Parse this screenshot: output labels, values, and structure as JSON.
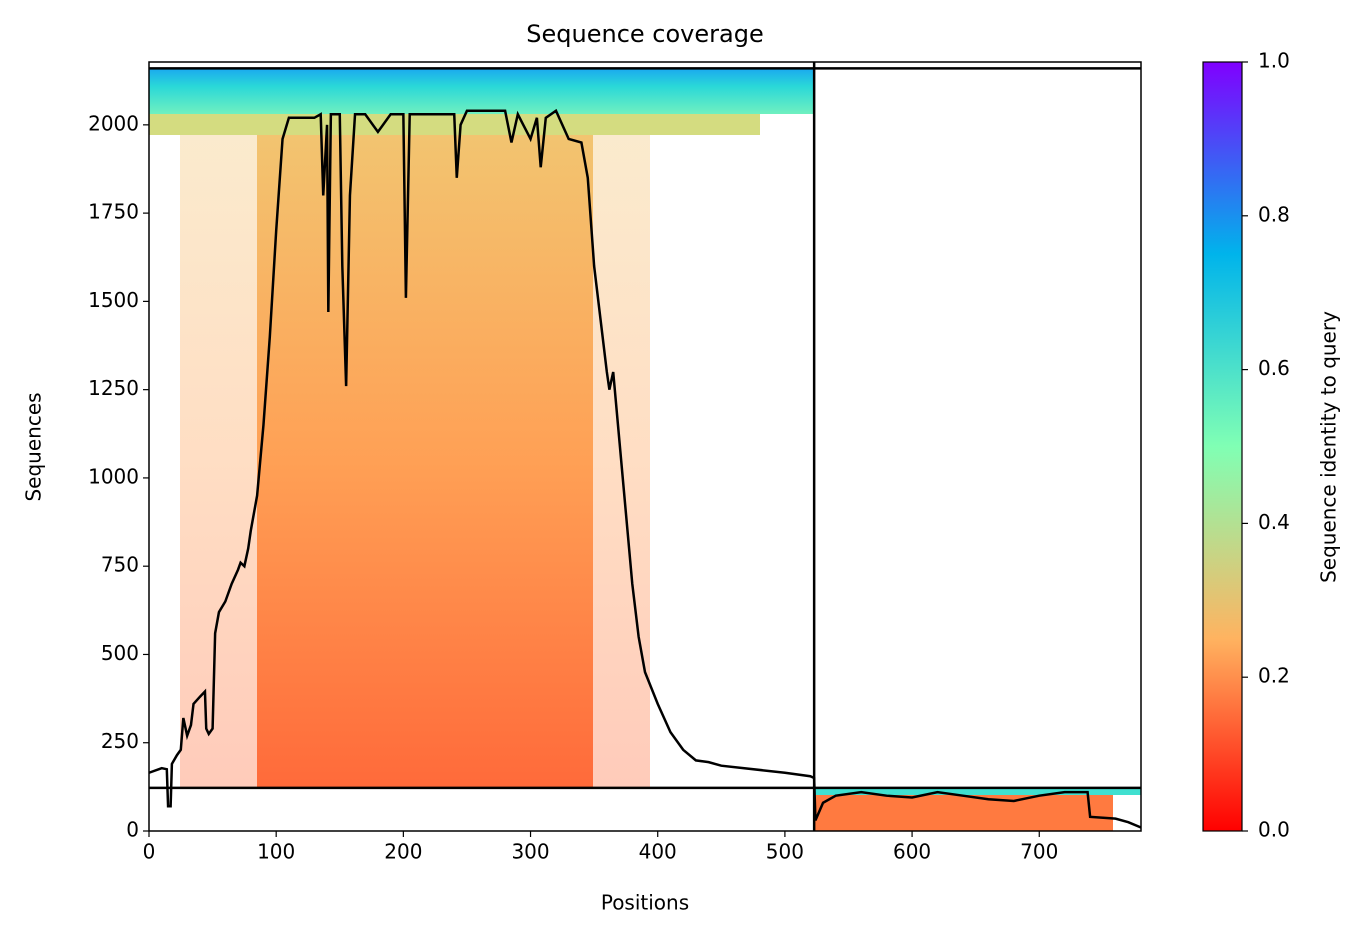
{
  "chart_data": {
    "type": "line",
    "title": "Sequence coverage",
    "x_label": "Positions",
    "y_label": "Sequences",
    "xlim": [
      0,
      780
    ],
    "xticks": [
      0,
      100,
      200,
      300,
      400,
      500,
      600,
      700
    ],
    "ylim": [
      0,
      2178
    ],
    "yticks": [
      0,
      250,
      500,
      750,
      1000,
      1250,
      1500,
      1750,
      2000
    ],
    "chain_break_x": 523,
    "chain_break_y": [
      122,
      2160
    ],
    "series": [
      {
        "name": "Coverage",
        "color": "#000000",
        "x": [
          0,
          10,
          14,
          15,
          17,
          18,
          22,
          25,
          27,
          30,
          33,
          35,
          40,
          44,
          45,
          47,
          50,
          52,
          55,
          60,
          65,
          70,
          72,
          75,
          78,
          80,
          85,
          90,
          95,
          100,
          105,
          110,
          130,
          135,
          137,
          140,
          141,
          143,
          150,
          152,
          155,
          158,
          162,
          170,
          180,
          190,
          200,
          202,
          205,
          240,
          242,
          245,
          250,
          280,
          285,
          290,
          300,
          305,
          308,
          312,
          320,
          330,
          340,
          345,
          350,
          360,
          362,
          365,
          370,
          375,
          380,
          385,
          390,
          400,
          410,
          420,
          430,
          440,
          450,
          500,
          520,
          523,
          524,
          530,
          540,
          560,
          580,
          600,
          620,
          640,
          660,
          680,
          700,
          720,
          738,
          740,
          760,
          770,
          780
        ],
        "values": [
          165,
          178,
          175,
          70,
          70,
          190,
          215,
          230,
          320,
          270,
          300,
          360,
          380,
          395,
          290,
          275,
          290,
          560,
          620,
          650,
          700,
          740,
          760,
          750,
          800,
          850,
          950,
          1150,
          1400,
          1700,
          1960,
          2020,
          2020,
          2030,
          1800,
          2000,
          1470,
          2030,
          2030,
          1600,
          1260,
          1800,
          2030,
          2030,
          1980,
          2030,
          2030,
          1510,
          2030,
          2030,
          1850,
          2000,
          2040,
          2040,
          1950,
          2030,
          1960,
          2020,
          1880,
          2020,
          2040,
          1960,
          1950,
          1850,
          1600,
          1300,
          1250,
          1300,
          1100,
          900,
          700,
          550,
          450,
          360,
          280,
          230,
          200,
          195,
          185,
          165,
          155,
          150,
          30,
          80,
          100,
          110,
          100,
          95,
          110,
          100,
          90,
          85,
          100,
          110,
          110,
          40,
          35,
          25,
          10
        ]
      }
    ],
    "colorbar": {
      "label": "Sequence identity to query",
      "lim": [
        0,
        1
      ],
      "ticks": [
        {
          "value": 0,
          "label": "0.0"
        },
        0.2,
        0.4,
        0.6,
        0.8,
        {
          "value": 1,
          "label": "1.0"
        }
      ]
    }
  }
}
